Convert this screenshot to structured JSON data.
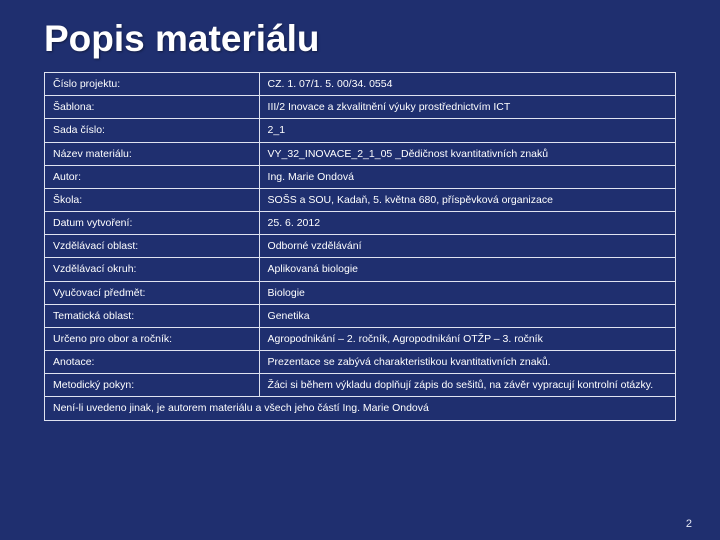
{
  "slide": {
    "title": "Popis materiálu",
    "page_number": "2",
    "background_color": "#1f2f6f",
    "text_color": "#ffffff",
    "border_color": "#dfe3f1",
    "title_fontsize_pt": 37,
    "cell_fontsize_pt": 10.5,
    "font_family": "Verdana",
    "column_widths_pct": [
      34,
      66
    ]
  },
  "table": {
    "rows": [
      {
        "key": "Číslo projektu:",
        "val": "CZ. 1. 07/1. 5. 00/34. 0554"
      },
      {
        "key": "Šablona:",
        "val": "III/2 Inovace a zkvalitnění výuky prostřednictvím ICT"
      },
      {
        "key": "Sada číslo:",
        "val": "2_1"
      },
      {
        "key": "Název materiálu:",
        "val": "VY_32_INOVACE_2_1_05 _Dědičnost kvantitativních znaků"
      },
      {
        "key": "Autor:",
        "val": "Ing. Marie Ondová"
      },
      {
        "key": "Škola:",
        "val": "SOŠS a SOU, Kadaň, 5. května 680, příspěvková organizace"
      },
      {
        "key": "Datum vytvoření:",
        "val": "25. 6. 2012"
      },
      {
        "key": "Vzdělávací oblast:",
        "val": "Odborné vzdělávání"
      },
      {
        "key": "Vzdělávací okruh:",
        "val": "Aplikovaná biologie"
      },
      {
        "key": "Vyučovací předmět:",
        "val": "Biologie"
      },
      {
        "key": "Tematická oblast:",
        "val": "Genetika"
      },
      {
        "key": "Určeno pro obor a ročník:",
        "val": "Agropodnikání – 2. ročník, Agropodnikání OTŽP – 3. ročník"
      },
      {
        "key": "Anotace:",
        "val": "Prezentace se zabývá charakteristikou kvantitativních znaků."
      },
      {
        "key": "Metodický pokyn:",
        "val": "Žáci si během výkladu doplňují zápis do sešitů, na závěr vypracují kontrolní otázky."
      }
    ],
    "footer": "Není-li uvedeno jinak, je autorem materiálu a všech jeho částí Ing. Marie Ondová"
  }
}
